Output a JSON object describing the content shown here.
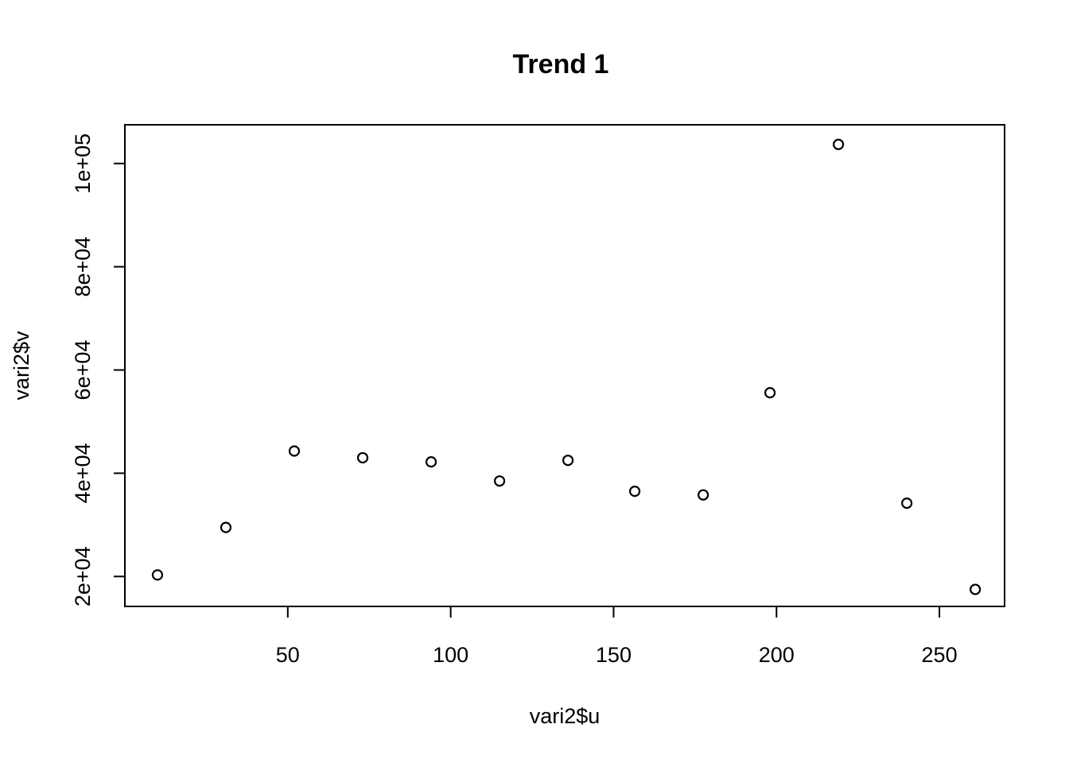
{
  "chart_data": {
    "type": "scatter",
    "title": "Trend 1",
    "xlabel": "vari2$u",
    "ylabel": "vari2$v",
    "xlim": [
      0,
      270
    ],
    "ylim": [
      14200,
      107500
    ],
    "x_ticks": [
      50,
      100,
      150,
      200,
      250
    ],
    "x_tick_labels": [
      "50",
      "100",
      "150",
      "200",
      "250"
    ],
    "y_ticks": [
      20000,
      40000,
      60000,
      80000,
      100000
    ],
    "y_tick_labels": [
      "2e+04",
      "4e+04",
      "6e+04",
      "8e+04",
      "1e+05"
    ],
    "grid": false,
    "legend": "none",
    "points": [
      {
        "x": 10,
        "y": 20300
      },
      {
        "x": 31,
        "y": 29500
      },
      {
        "x": 52,
        "y": 44300
      },
      {
        "x": 73,
        "y": 43000
      },
      {
        "x": 94,
        "y": 42200
      },
      {
        "x": 115,
        "y": 38500
      },
      {
        "x": 136,
        "y": 42500
      },
      {
        "x": 156.5,
        "y": 36500
      },
      {
        "x": 177.5,
        "y": 35800
      },
      {
        "x": 198,
        "y": 55600
      },
      {
        "x": 219,
        "y": 103700
      },
      {
        "x": 240,
        "y": 34200
      },
      {
        "x": 261,
        "y": 17500
      }
    ],
    "point_color": "#000000",
    "marker": "open-circle"
  }
}
